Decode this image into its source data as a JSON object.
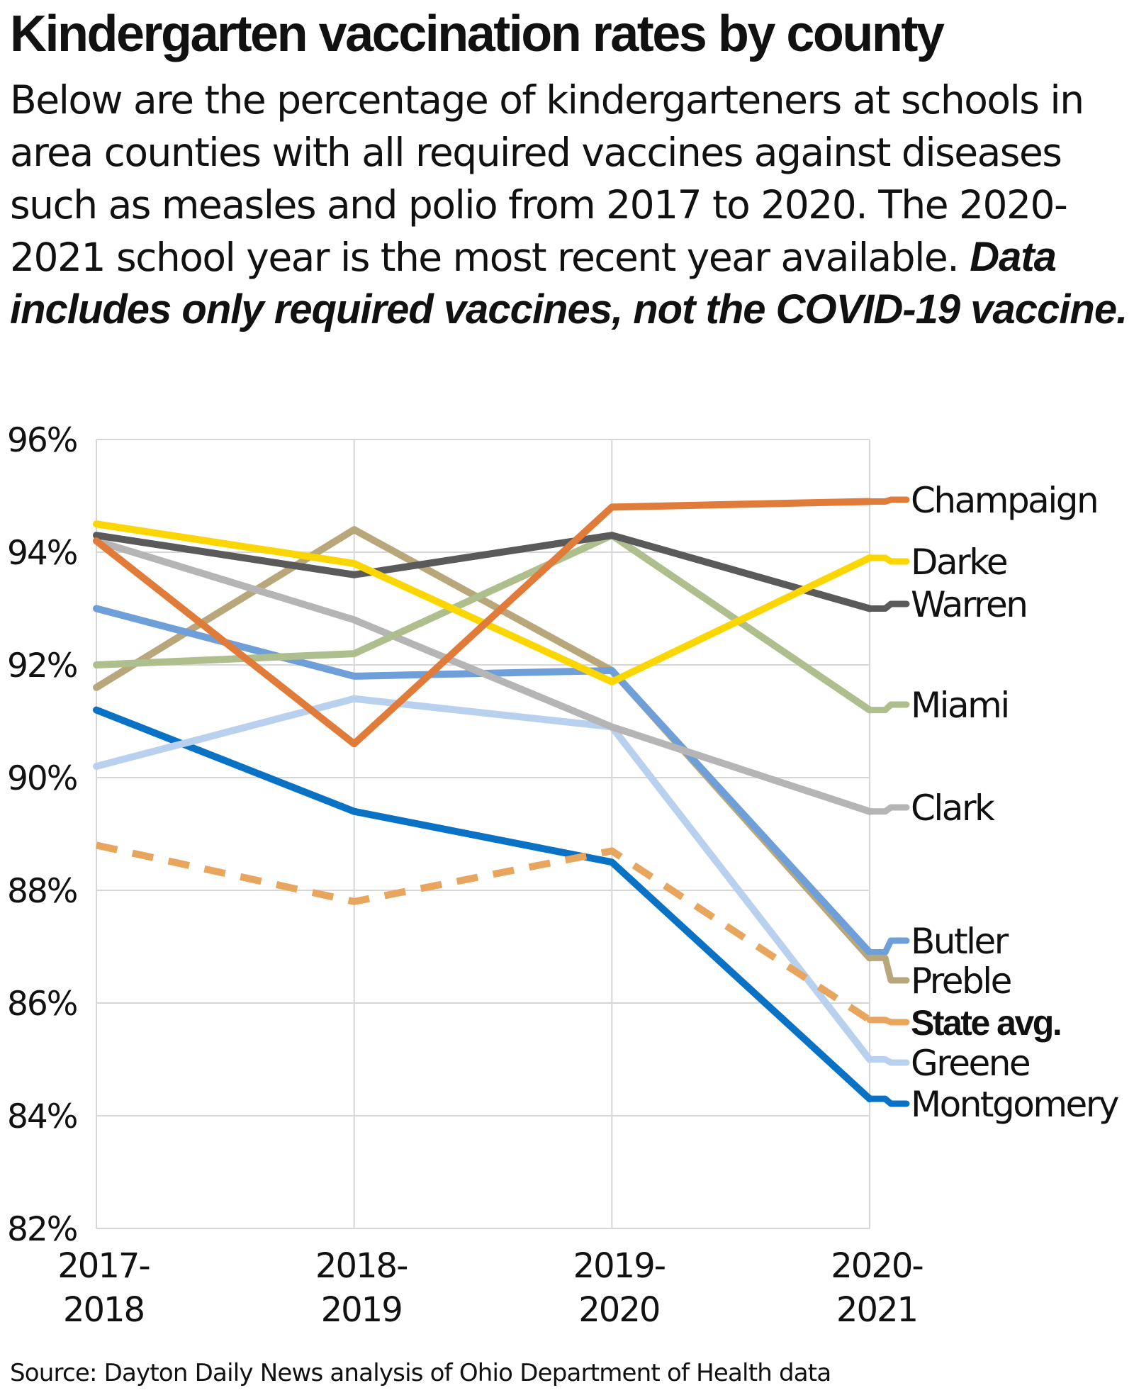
{
  "title": "Kindergarten vaccination rates by county",
  "subtitle": "Below are the percentage of kindergarteners at schools in area counties with all required vaccines against diseases such as measles and polio from 2017 to 2020. The 2020-2021 school year is the most recent year available.",
  "note": "Data includes only required vaccines, not the COVID-19 vaccine.",
  "source": "Source: Dayton Daily News analysis of Ohio Department of Health data",
  "chart_data": {
    "type": "line",
    "categories": [
      [
        "2017-",
        "2018"
      ],
      [
        "2018-",
        "2019"
      ],
      [
        "2019-",
        "2020"
      ],
      [
        "2020-",
        "2021"
      ]
    ],
    "ylim": [
      82,
      96
    ],
    "yticks": [
      82,
      84,
      86,
      88,
      90,
      92,
      94,
      96
    ],
    "ytick_labels": [
      "82%",
      "84%",
      "86%",
      "88%",
      "90%",
      "92%",
      "94%",
      "96%"
    ],
    "grid": true,
    "legend": "right-end line labels",
    "series": [
      {
        "name": "Champaign",
        "values": [
          94.2,
          90.6,
          94.8,
          94.9
        ],
        "color": "#e07b39",
        "dashed": false,
        "bold": false
      },
      {
        "name": "Darke",
        "values": [
          94.5,
          93.8,
          91.7,
          93.9
        ],
        "color": "#fcd600",
        "dashed": false,
        "bold": false
      },
      {
        "name": "Warren",
        "values": [
          94.3,
          93.6,
          94.3,
          93.0
        ],
        "color": "#5a5a5a",
        "dashed": false,
        "bold": false
      },
      {
        "name": "Miami",
        "values": [
          92.0,
          92.2,
          94.3,
          91.2
        ],
        "color": "#aebe8c",
        "dashed": false,
        "bold": false
      },
      {
        "name": "Clark",
        "values": [
          94.2,
          92.8,
          90.9,
          89.4
        ],
        "color": "#b5b5b5",
        "dashed": false,
        "bold": false
      },
      {
        "name": "Butler",
        "values": [
          93.0,
          91.8,
          91.9,
          86.9
        ],
        "color": "#6f9fd8",
        "dashed": false,
        "bold": false
      },
      {
        "name": "Preble",
        "values": [
          91.6,
          94.4,
          91.9,
          86.8
        ],
        "color": "#b8a77a",
        "dashed": false,
        "bold": false
      },
      {
        "name": "State avg.",
        "values": [
          88.8,
          87.8,
          88.7,
          85.7
        ],
        "color": "#e8a55e",
        "dashed": true,
        "bold": true
      },
      {
        "name": "Greene",
        "values": [
          90.2,
          91.4,
          90.9,
          85.0
        ],
        "color": "#b9d1ef",
        "dashed": false,
        "bold": false
      },
      {
        "name": "Montgomery",
        "values": [
          91.2,
          89.4,
          88.5,
          84.3
        ],
        "color": "#0a72c4",
        "dashed": false,
        "bold": false
      }
    ]
  }
}
